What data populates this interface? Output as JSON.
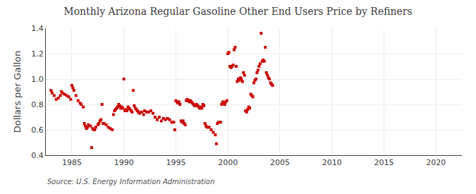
{
  "chart_data": {
    "type": "scatter",
    "title": "Monthly Arizona Regular Gasoline Other End Users Price by Refiners",
    "ylabel": "Dollars per Gallon",
    "annotations": [
      "Source: U.S. Energy Information Administration"
    ],
    "color": "#cc0000",
    "marker": "square",
    "grid": true,
    "xlim": [
      1982.5,
      2022.5
    ],
    "ylim": [
      0.4,
      1.4
    ],
    "xticks": [
      1985,
      1990,
      1995,
      2000,
      2005,
      2010,
      2015,
      2020
    ],
    "yticks": [
      0.4,
      0.6,
      0.8,
      {
        "value": 1.0,
        "label": "1.0"
      },
      1.2,
      1.4
    ],
    "x": [
      1983.0,
      1983.1,
      1983.3,
      1983.5,
      1983.7,
      1983.9,
      1984.0,
      1984.1,
      1984.3,
      1984.5,
      1984.7,
      1984.9,
      1985.0,
      1985.1,
      1985.2,
      1985.4,
      1985.6,
      1985.8,
      1985.9,
      1986.1,
      1986.2,
      1986.3,
      1986.4,
      1986.5,
      1986.6,
      1986.8,
      1986.9,
      1987.0,
      1987.1,
      1987.2,
      1987.3,
      1987.5,
      1987.6,
      1987.7,
      1987.8,
      1987.9,
      1988.0,
      1988.1,
      1988.3,
      1988.5,
      1988.7,
      1988.9,
      1989.0,
      1989.1,
      1989.2,
      1989.3,
      1989.4,
      1989.5,
      1989.6,
      1989.7,
      1989.8,
      1989.9,
      1990.0,
      1990.1,
      1990.2,
      1990.3,
      1990.4,
      1990.5,
      1990.6,
      1990.7,
      1990.8,
      1990.9,
      1991.0,
      1991.1,
      1991.2,
      1991.3,
      1991.4,
      1991.5,
      1991.7,
      1991.9,
      1992.0,
      1992.2,
      1992.4,
      1992.6,
      1992.8,
      1993.0,
      1993.2,
      1993.4,
      1993.6,
      1993.8,
      1994.0,
      1994.2,
      1994.4,
      1994.6,
      1994.8,
      1994.9,
      1995.0,
      1995.1,
      1995.2,
      1995.3,
      1995.4,
      1995.5,
      1995.6,
      1995.7,
      1995.8,
      1995.9,
      1996.0,
      1996.1,
      1996.2,
      1996.3,
      1996.4,
      1996.5,
      1996.6,
      1996.7,
      1996.8,
      1996.9,
      1997.0,
      1997.1,
      1997.2,
      1997.3,
      1997.4,
      1997.5,
      1997.6,
      1997.7,
      1997.8,
      1997.9,
      1998.0,
      1998.2,
      1998.4,
      1998.6,
      1998.8,
      1998.9,
      1999.0,
      1999.1,
      1999.3,
      1999.4,
      1999.5,
      1999.6,
      1999.7,
      1999.8,
      1999.9,
      2000.0,
      2000.1,
      2000.2,
      2000.3,
      2000.4,
      2000.5,
      2000.6,
      2000.7,
      2000.8,
      2000.9,
      2001.0,
      2001.1,
      2001.2,
      2001.3,
      2001.4,
      2001.5,
      2001.6,
      2001.7,
      2001.8,
      2001.9,
      2002.0,
      2002.1,
      2002.2,
      2002.3,
      2002.4,
      2002.5,
      2002.6,
      2002.7,
      2002.8,
      2002.9,
      2003.0,
      2003.1,
      2003.2,
      2003.3,
      2003.4,
      2003.5,
      2003.6,
      2003.7,
      2003.8,
      2003.9,
      2004.0,
      2004.1,
      2004.2,
      2004.3
    ],
    "values": [
      0.91,
      0.89,
      0.87,
      0.84,
      0.85,
      0.87,
      0.9,
      0.89,
      0.88,
      0.87,
      0.86,
      0.84,
      0.95,
      0.93,
      0.91,
      0.87,
      0.83,
      0.81,
      0.8,
      0.78,
      0.65,
      0.63,
      0.61,
      0.62,
      0.64,
      0.63,
      0.46,
      0.61,
      0.6,
      0.6,
      0.62,
      0.64,
      0.65,
      0.67,
      0.68,
      0.8,
      0.65,
      0.65,
      0.64,
      0.62,
      0.61,
      0.6,
      0.72,
      0.75,
      0.76,
      0.77,
      0.78,
      0.8,
      0.79,
      0.77,
      0.78,
      0.77,
      1.0,
      0.75,
      0.76,
      0.75,
      0.78,
      0.77,
      0.76,
      0.75,
      0.74,
      0.91,
      0.79,
      0.77,
      0.76,
      0.75,
      0.74,
      0.73,
      0.74,
      0.72,
      0.75,
      0.74,
      0.74,
      0.75,
      0.73,
      0.7,
      0.68,
      0.7,
      0.67,
      0.69,
      0.68,
      0.69,
      0.68,
      0.66,
      0.66,
      0.6,
      0.83,
      0.82,
      0.81,
      0.82,
      0.8,
      0.67,
      0.66,
      0.67,
      0.65,
      0.64,
      0.83,
      0.84,
      0.83,
      0.82,
      0.83,
      0.82,
      0.81,
      0.8,
      0.79,
      0.79,
      0.8,
      0.79,
      0.78,
      0.77,
      0.78,
      0.77,
      0.8,
      0.79,
      0.65,
      0.63,
      0.62,
      0.62,
      0.6,
      0.58,
      0.56,
      0.49,
      0.65,
      0.66,
      0.66,
      0.8,
      0.82,
      0.81,
      0.8,
      0.82,
      0.83,
      1.2,
      1.21,
      1.1,
      1.09,
      1.1,
      1.11,
      1.23,
      1.25,
      1.1,
      0.98,
      1.0,
      0.99,
      1.01,
      1.0,
      0.98,
      1.05,
      1.03,
      0.75,
      0.74,
      0.76,
      0.78,
      0.77,
      0.88,
      0.87,
      0.86,
      0.97,
      0.99,
      1.0,
      1.05,
      1.07,
      1.1,
      1.12,
      1.36,
      1.14,
      1.15,
      1.14,
      1.25,
      1.05,
      1.03,
      1.01,
      1.0,
      0.97,
      0.96,
      0.95
    ]
  }
}
